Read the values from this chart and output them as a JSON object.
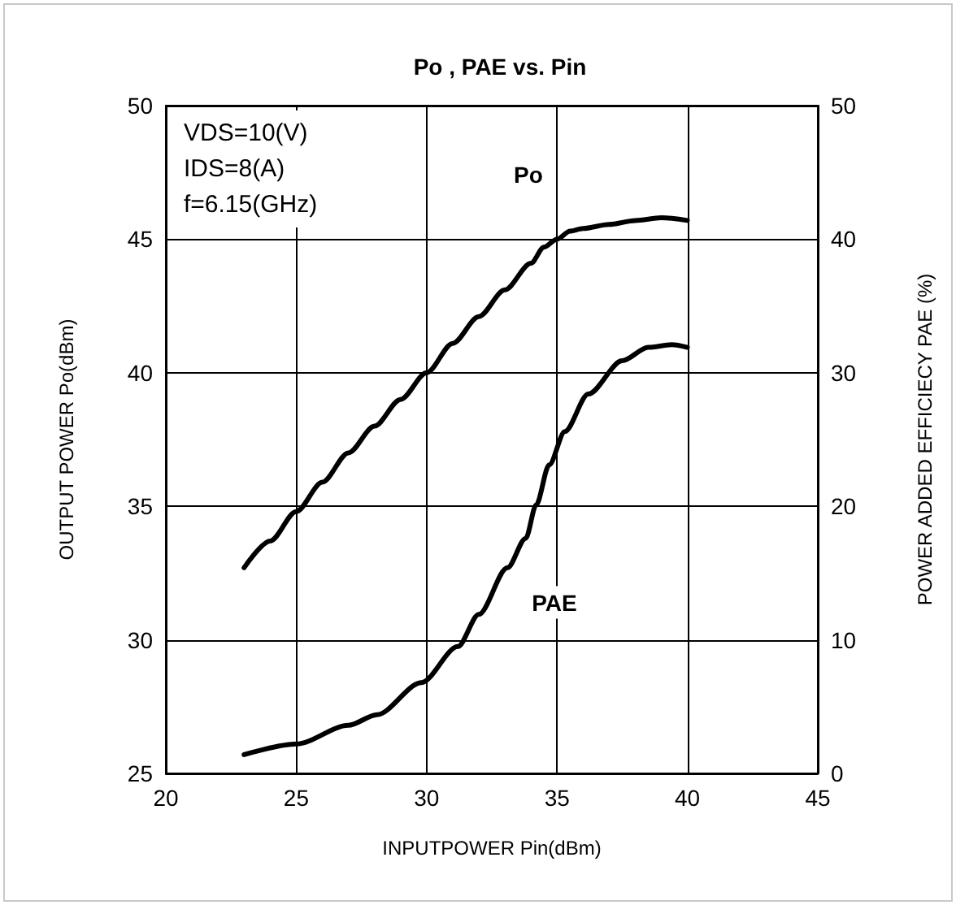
{
  "chart_data": {
    "type": "line",
    "title": "Po , PAE vs. Pin",
    "xlabel": "INPUTPOWER Pin(dBm)",
    "ylabel": "OUTPUT POWER Po(dBm)",
    "y2label": "POWER ADDED EFFICIECY PAE (%)",
    "xlim": [
      20,
      45
    ],
    "xticks": [
      20,
      25,
      30,
      35,
      40,
      45
    ],
    "ylim": [
      25,
      50
    ],
    "yticks": [
      25,
      30,
      35,
      40,
      45,
      50
    ],
    "y2lim": [
      0,
      50
    ],
    "y2ticks": [
      0,
      10,
      20,
      30,
      40,
      50
    ],
    "grid": true,
    "marker": "none",
    "line_style": "solid",
    "annotations": [
      "VDS=10(V)",
      "IDS=8(A)",
      "f=6.15(GHz)",
      {
        "text": "Po",
        "x": 33.9,
        "y": 47.4
      },
      {
        "text": "PAE",
        "x": 34.9,
        "y": 31.4
      }
    ],
    "series": [
      {
        "color": "#000000",
        "x": [
          23,
          24,
          25,
          26,
          27,
          28,
          29,
          30,
          31,
          32,
          33,
          34,
          34.5,
          35,
          35.5,
          36,
          37,
          38,
          39,
          40
        ],
        "values": [
          32.7,
          33.7,
          34.8,
          35.9,
          37.0,
          38.0,
          39.0,
          40.0,
          41.1,
          42.1,
          43.1,
          44.1,
          44.7,
          45.0,
          45.3,
          45.4,
          45.55,
          45.7,
          45.8,
          45.7
        ]
      },
      {
        "color": "#000000",
        "axis": "y2",
        "x": [
          23,
          25,
          27,
          28.1,
          29.8,
          31.2,
          32,
          33.1,
          33.8,
          34.2,
          34.7,
          35.3,
          36.2,
          37.5,
          38.5,
          39.4,
          40
        ],
        "values": [
          1.4,
          2.2,
          3.6,
          4.4,
          6.8,
          9.5,
          11.9,
          15.4,
          17.6,
          20.1,
          23.1,
          25.6,
          28.4,
          30.9,
          31.9,
          32.1,
          31.9
        ]
      }
    ]
  }
}
